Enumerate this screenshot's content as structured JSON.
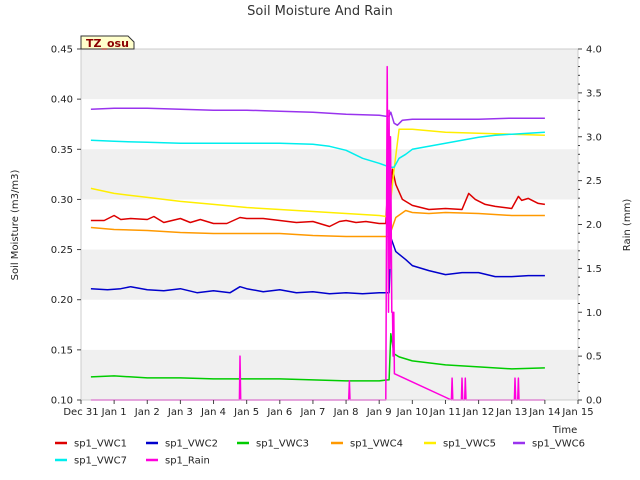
{
  "chart_data": {
    "type": "line",
    "title": "Soil Moisture And Rain",
    "badge": "TZ_osu",
    "xlabel": "Time",
    "ylabel": "Soil Moisture (m3/m3)",
    "y2label": "Rain (mm)",
    "ylim": [
      0.1,
      0.45
    ],
    "y2lim": [
      0.0,
      4.0
    ],
    "xlim": [
      0,
      15
    ],
    "x_ticks": [
      {
        "label": "Dec 31",
        "value": 0
      },
      {
        "label": "Jan 1",
        "value": 1
      },
      {
        "label": "Jan 2",
        "value": 2
      },
      {
        "label": "Jan 3",
        "value": 3
      },
      {
        "label": "Jan 4",
        "value": 4
      },
      {
        "label": "Jan 5",
        "value": 5
      },
      {
        "label": "Jan 6",
        "value": 6
      },
      {
        "label": "Jan 7",
        "value": 7
      },
      {
        "label": "Jan 8",
        "value": 8
      },
      {
        "label": "Jan 9",
        "value": 9
      },
      {
        "label": "Jan 10",
        "value": 10
      },
      {
        "label": "Jan 11",
        "value": 11
      },
      {
        "label": "Jan 12",
        "value": 12
      },
      {
        "label": "Jan 13",
        "value": 13
      },
      {
        "label": "Jan 14",
        "value": 14
      },
      {
        "label": "Jan 15",
        "value": 15
      }
    ],
    "y_ticks": [
      "0.10",
      "0.15",
      "0.20",
      "0.25",
      "0.30",
      "0.35",
      "0.40",
      "0.45"
    ],
    "y2_ticks": [
      "0.0",
      "0.5",
      "1.0",
      "1.5",
      "2.0",
      "2.5",
      "3.0",
      "3.5",
      "4.0"
    ],
    "grid": "horizontal bands",
    "legend_position": "bottom",
    "series": [
      {
        "name": "sp1_VWC1",
        "color": "#dd0000",
        "axis": "left",
        "x": [
          0.3,
          0.7,
          1.0,
          1.2,
          1.5,
          2.0,
          2.2,
          2.5,
          3.0,
          3.3,
          3.6,
          4.0,
          4.4,
          4.8,
          5.0,
          5.5,
          6.0,
          6.5,
          7.0,
          7.5,
          7.8,
          8.0,
          8.3,
          8.6,
          9.0,
          9.2,
          9.3,
          9.35,
          9.4,
          9.5,
          9.7,
          10.0,
          10.5,
          11.0,
          11.5,
          11.7,
          11.9,
          12.2,
          12.5,
          13.0,
          13.2,
          13.3,
          13.5,
          13.8,
          14.0
        ],
        "y": [
          0.279,
          0.279,
          0.284,
          0.28,
          0.281,
          0.28,
          0.283,
          0.277,
          0.281,
          0.277,
          0.28,
          0.276,
          0.276,
          0.282,
          0.281,
          0.281,
          0.279,
          0.277,
          0.278,
          0.273,
          0.278,
          0.279,
          0.277,
          0.278,
          0.276,
          0.276,
          0.34,
          0.31,
          0.33,
          0.315,
          0.3,
          0.294,
          0.29,
          0.291,
          0.29,
          0.306,
          0.3,
          0.295,
          0.293,
          0.291,
          0.303,
          0.299,
          0.301,
          0.296,
          0.295
        ]
      },
      {
        "name": "sp1_VWC2",
        "color": "#0000cc",
        "axis": "left",
        "x": [
          0.3,
          0.8,
          1.2,
          1.5,
          2.0,
          2.5,
          3.0,
          3.5,
          4.0,
          4.5,
          4.8,
          5.0,
          5.5,
          6.0,
          6.5,
          7.0,
          7.5,
          8.0,
          8.5,
          9.0,
          9.2,
          9.3,
          9.35,
          9.5,
          9.8,
          10.0,
          10.5,
          11.0,
          11.5,
          12.0,
          12.5,
          13.0,
          13.5,
          14.0
        ],
        "y": [
          0.211,
          0.21,
          0.211,
          0.213,
          0.21,
          0.209,
          0.211,
          0.207,
          0.209,
          0.207,
          0.213,
          0.211,
          0.208,
          0.21,
          0.207,
          0.208,
          0.206,
          0.207,
          0.206,
          0.207,
          0.207,
          0.207,
          0.262,
          0.248,
          0.24,
          0.234,
          0.229,
          0.225,
          0.227,
          0.227,
          0.223,
          0.223,
          0.224,
          0.224
        ]
      },
      {
        "name": "sp1_VWC3",
        "color": "#00cc00",
        "axis": "left",
        "x": [
          0.3,
          1.0,
          2.0,
          3.0,
          4.0,
          5.0,
          6.0,
          7.0,
          8.0,
          9.0,
          9.25,
          9.3,
          9.35,
          9.45,
          9.6,
          10.0,
          10.5,
          11.0,
          12.0,
          13.0,
          14.0
        ],
        "y": [
          0.123,
          0.124,
          0.122,
          0.122,
          0.121,
          0.121,
          0.121,
          0.12,
          0.119,
          0.119,
          0.12,
          0.12,
          0.166,
          0.146,
          0.143,
          0.139,
          0.137,
          0.135,
          0.133,
          0.131,
          0.132
        ]
      },
      {
        "name": "sp1_VWC4",
        "color": "#ff9900",
        "axis": "left",
        "x": [
          0.3,
          1.0,
          2.0,
          3.0,
          4.0,
          5.0,
          6.0,
          7.0,
          8.0,
          9.0,
          9.25,
          9.3,
          9.5,
          9.8,
          10.0,
          10.5,
          11.0,
          12.0,
          13.0,
          14.0
        ],
        "y": [
          0.272,
          0.27,
          0.269,
          0.267,
          0.266,
          0.266,
          0.266,
          0.264,
          0.263,
          0.263,
          0.263,
          0.263,
          0.282,
          0.289,
          0.287,
          0.286,
          0.287,
          0.286,
          0.284,
          0.284
        ]
      },
      {
        "name": "sp1_VWC5",
        "color": "#ffee00",
        "axis": "left",
        "x": [
          0.3,
          1.0,
          2.0,
          3.0,
          4.0,
          5.0,
          6.0,
          7.0,
          8.0,
          9.0,
          9.2,
          9.3,
          9.45,
          9.6,
          10.0,
          11.0,
          12.0,
          13.0,
          14.0
        ],
        "y": [
          0.311,
          0.306,
          0.302,
          0.298,
          0.295,
          0.292,
          0.29,
          0.288,
          0.286,
          0.284,
          0.283,
          0.284,
          0.33,
          0.37,
          0.37,
          0.367,
          0.366,
          0.365,
          0.364
        ]
      },
      {
        "name": "sp1_VWC6",
        "color": "#9933ee",
        "axis": "left",
        "x": [
          0.3,
          1.0,
          2.0,
          3.0,
          4.0,
          5.0,
          6.0,
          7.0,
          8.0,
          9.0,
          9.2,
          9.3,
          9.35,
          9.45,
          9.55,
          9.7,
          10.0,
          11.0,
          12.0,
          13.0,
          14.0
        ],
        "y": [
          0.39,
          0.391,
          0.391,
          0.39,
          0.389,
          0.389,
          0.388,
          0.387,
          0.385,
          0.384,
          0.383,
          0.383,
          0.387,
          0.376,
          0.374,
          0.379,
          0.38,
          0.38,
          0.38,
          0.381,
          0.381
        ]
      },
      {
        "name": "sp1_VWC7",
        "color": "#00eeee",
        "axis": "left",
        "x": [
          0.3,
          1.0,
          2.0,
          3.0,
          4.0,
          5.0,
          6.0,
          7.0,
          7.5,
          8.0,
          8.5,
          9.0,
          9.25,
          9.35,
          9.45,
          9.6,
          9.8,
          10.0,
          10.5,
          11.0,
          11.5,
          12.0,
          12.5,
          13.0,
          13.5,
          14.0
        ],
        "y": [
          0.359,
          0.358,
          0.357,
          0.356,
          0.356,
          0.356,
          0.356,
          0.355,
          0.353,
          0.349,
          0.341,
          0.336,
          0.333,
          0.332,
          0.332,
          0.341,
          0.345,
          0.35,
          0.353,
          0.356,
          0.359,
          0.362,
          0.364,
          0.365,
          0.366,
          0.367
        ]
      },
      {
        "name": "sp1_Rain",
        "color": "#ff00dd",
        "axis": "right",
        "x": [
          0.3,
          4.78,
          4.8,
          4.82,
          8.08,
          8.1,
          8.12,
          9.2,
          9.24,
          9.26,
          9.28,
          9.3,
          9.32,
          9.34,
          9.36,
          9.38,
          9.4,
          9.42,
          9.44,
          9.46,
          11.18,
          11.2,
          11.22,
          11.48,
          11.5,
          11.52,
          11.58,
          11.6,
          11.62,
          13.08,
          13.1,
          13.12,
          13.18,
          13.2,
          13.22,
          14.0
        ],
        "y": [
          0.0,
          0.0,
          0.5,
          0.0,
          0.0,
          0.22,
          0.0,
          0.0,
          3.8,
          2.5,
          1.0,
          3.3,
          1.5,
          3.0,
          2.2,
          1.0,
          1.0,
          0.5,
          1.0,
          0.3,
          0.0,
          0.25,
          0.0,
          0.0,
          0.25,
          0.0,
          0.0,
          0.25,
          0.0,
          0.0,
          0.25,
          0.0,
          0.0,
          0.25,
          0.0,
          0.0
        ]
      }
    ]
  }
}
